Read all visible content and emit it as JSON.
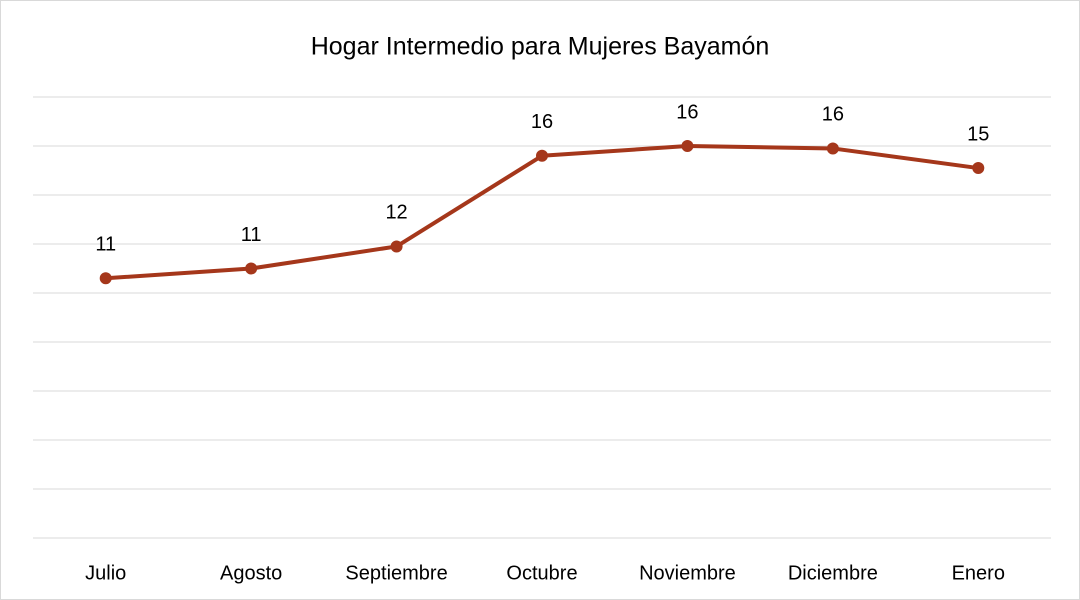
{
  "chart_data": {
    "type": "line",
    "title": "Hogar Intermedio para Mujeres Bayamón",
    "categories": [
      "Julio",
      "Agosto",
      "Septiembre",
      "Octubre",
      "Noviembre",
      "Diciembre",
      "Enero"
    ],
    "series": [
      {
        "name": "Hogar Intermedio para Mujeres Bayamón",
        "color": "#a5371b",
        "values": [
          10.6,
          11.0,
          11.9,
          15.6,
          16.0,
          15.9,
          15.1
        ],
        "value_labels": [
          "11",
          "11",
          "12",
          "16",
          "16",
          "16",
          "15"
        ]
      }
    ],
    "ylim": [
      0,
      18
    ],
    "yticks": [
      0,
      2,
      4,
      6,
      8,
      10,
      12,
      14,
      16,
      18
    ],
    "grid": true
  }
}
